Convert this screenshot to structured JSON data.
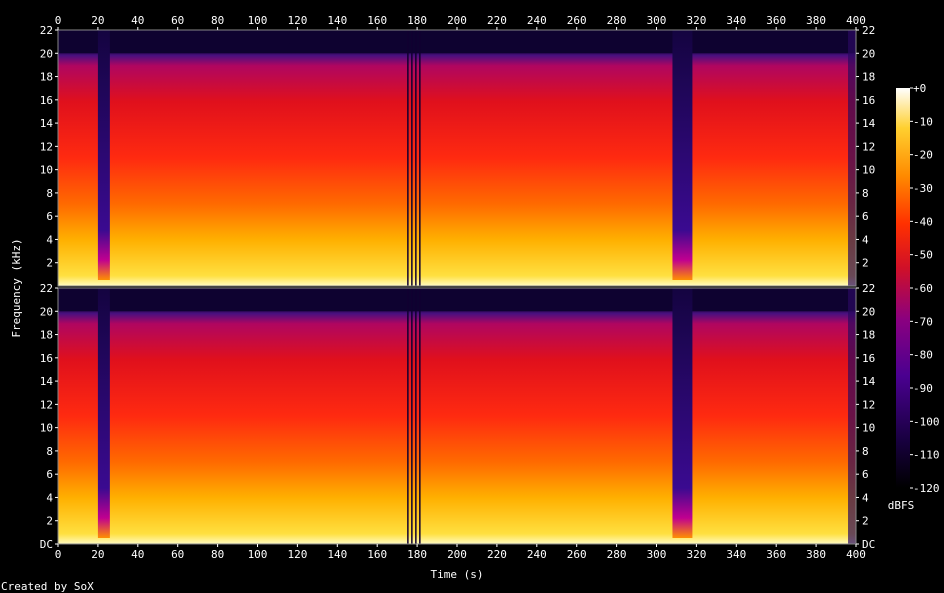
{
  "chart_data": {
    "type": "heatmap",
    "title": "",
    "xlabel": "Time (s)",
    "ylabel": "Frequency (kHz)",
    "xlim": [
      0,
      400
    ],
    "ylim": [
      0,
      22
    ],
    "x_ticks": [
      "0",
      "20",
      "40",
      "60",
      "80",
      "100",
      "120",
      "140",
      "160",
      "180",
      "200",
      "220",
      "240",
      "260",
      "280",
      "300",
      "320",
      "340",
      "360",
      "380",
      "400"
    ],
    "y_ticks_top": [
      "2",
      "4",
      "6",
      "8",
      "10",
      "12",
      "14",
      "16",
      "18",
      "20",
      "22"
    ],
    "y_ticks_bottom": [
      "DC",
      "2",
      "4",
      "6",
      "8",
      "10",
      "12",
      "14",
      "16",
      "18",
      "20",
      "22"
    ],
    "colorbar": {
      "label": "dBFS",
      "ticks": [
        "+0",
        "-10",
        "-20",
        "-30",
        "-40",
        "-50",
        "-60",
        "-70",
        "-80",
        "-90",
        "-100",
        "-110",
        "-120"
      ],
      "range": [
        -120,
        0
      ]
    },
    "channels": [
      {
        "cutoff_khz": 20,
        "dropouts": [
          [
            20,
            26
          ],
          [
            308,
            318
          ]
        ],
        "vertical_gaps": [
          175,
          177,
          179,
          181
        ]
      },
      {
        "cutoff_khz": 20,
        "dropouts": [
          [
            20,
            26
          ],
          [
            308,
            318
          ]
        ],
        "vertical_gaps": [
          175,
          177,
          179,
          181
        ]
      }
    ],
    "grid": false
  },
  "footer": {
    "credit": "Created by SoX"
  },
  "colors": {
    "background": "#000000",
    "scale": [
      "#000000",
      "#1a0050",
      "#4a0090",
      "#8a0080",
      "#c00020",
      "#ff2000",
      "#ff7000",
      "#ffc000",
      "#ffff60",
      "#ffffff"
    ]
  }
}
